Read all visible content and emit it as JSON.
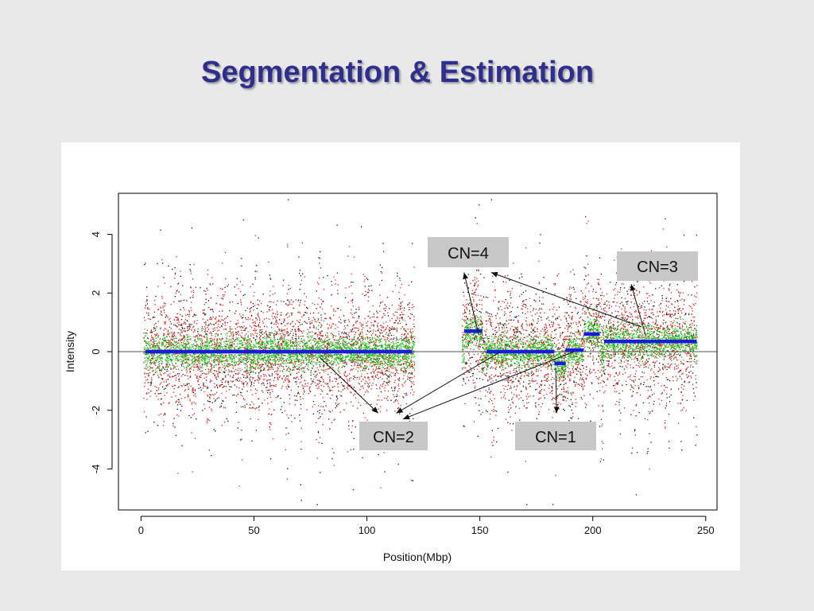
{
  "slide": {
    "title": "Segmentation & Estimation"
  },
  "colors": {
    "title": "#2e2e8f",
    "segment": "#1a1ae0",
    "points_green": "#18c818",
    "points_red": "#e01818",
    "points_black": "#111111",
    "label_box": "#c8c8c8"
  },
  "chart_data": {
    "type": "scatter",
    "title": "",
    "xlabel": "Position(Mbp)",
    "ylabel": "Intensity",
    "xlim": [
      -10,
      255
    ],
    "ylim": [
      -5.4,
      5.4
    ],
    "xticks": [
      0,
      50,
      100,
      150,
      200,
      250
    ],
    "yticks": [
      -4,
      -2,
      0,
      2,
      4
    ],
    "reference_line_y": 0,
    "grid": false,
    "point_series": [
      {
        "color": "black",
        "description_spread_sd": 1.3
      },
      {
        "color": "red",
        "description_spread_sd": 1.0
      },
      {
        "color": "green",
        "description_spread_sd": 0.28
      }
    ],
    "data_regions": [
      {
        "x_start": 1,
        "x_end": 121
      },
      {
        "x_start": 142,
        "x_end": 246
      }
    ],
    "segments": [
      {
        "x_start": 2,
        "x_end": 120,
        "y": 0.0
      },
      {
        "x_start": 143,
        "x_end": 151,
        "y": 0.7
      },
      {
        "x_start": 153,
        "x_end": 183,
        "y": 0.0
      },
      {
        "x_start": 183,
        "x_end": 188,
        "y": -0.4
      },
      {
        "x_start": 188,
        "x_end": 196,
        "y": 0.05
      },
      {
        "x_start": 196,
        "x_end": 203,
        "y": 0.6
      },
      {
        "x_start": 205,
        "x_end": 246,
        "y": 0.35
      }
    ],
    "annotations": [
      {
        "label": "CN=4",
        "arrows_to": [
          [
            143,
            2.7
          ],
          [
            155,
            2.7
          ]
        ]
      },
      {
        "label": "CN=3",
        "arrows_to": [
          [
            217,
            2.3
          ]
        ]
      },
      {
        "label": "CN=2",
        "arrows_to": [
          [
            105,
            -2.1
          ],
          [
            113,
            -2.1
          ],
          [
            116,
            -2.3
          ]
        ]
      },
      {
        "label": "CN=1",
        "arrows_to": [
          [
            184,
            -2.1
          ]
        ]
      }
    ]
  }
}
